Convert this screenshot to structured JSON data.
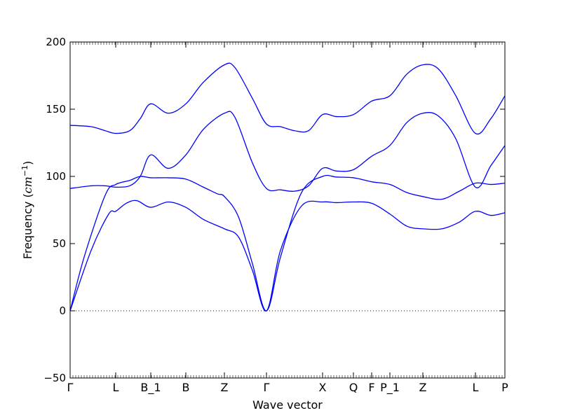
{
  "chart_data": {
    "type": "line",
    "title": "",
    "xlabel": "Wave vector",
    "ylabel_prefix": "Frequency (",
    "ylabel_unit": "cm",
    "ylabel_exp": "−1",
    "ylabel_suffix": ")",
    "ylim": [
      -50,
      200
    ],
    "xlim": [
      0,
      6.2
    ],
    "yticks": [
      -50,
      0,
      50,
      100,
      150,
      200
    ],
    "ytick_labels": [
      "−50",
      "0",
      "50",
      "100",
      "150",
      "200"
    ],
    "xticks": [
      {
        "label": "Γ",
        "x": 0.0
      },
      {
        "label": "L",
        "x": 0.65
      },
      {
        "label": "B_1",
        "x": 1.15
      },
      {
        "label": "B",
        "x": 1.65
      },
      {
        "label": "Z",
        "x": 2.2
      },
      {
        "label": "Γ",
        "x": 2.8
      },
      {
        "label": "X",
        "x": 3.6
      },
      {
        "label": "Q",
        "x": 4.04
      },
      {
        "label": "F",
        "x": 4.3
      },
      {
        "label": "P_1",
        "x": 4.56
      },
      {
        "label": "Z",
        "x": 5.03
      },
      {
        "label": "L",
        "x": 5.78
      },
      {
        "label": "P",
        "x": 6.2
      }
    ],
    "zero_line": true,
    "grid": false,
    "series_color": "#0000ff",
    "series": [
      {
        "points": [
          [
            0,
            0
          ],
          [
            0.3,
            45
          ],
          [
            0.55,
            72
          ],
          [
            0.65,
            74
          ],
          [
            0.8,
            80
          ],
          [
            0.95,
            82
          ],
          [
            1.15,
            77
          ],
          [
            1.4,
            81
          ],
          [
            1.65,
            77
          ],
          [
            1.9,
            68
          ],
          [
            2.2,
            61
          ],
          [
            2.4,
            55
          ],
          [
            2.6,
            30
          ],
          [
            2.8,
            0
          ],
          [
            3.0,
            45
          ],
          [
            3.3,
            78
          ],
          [
            3.6,
            81
          ],
          [
            3.8,
            80.5
          ],
          [
            4.04,
            81
          ],
          [
            4.3,
            80
          ],
          [
            4.56,
            72
          ],
          [
            4.8,
            63
          ],
          [
            5.03,
            61
          ],
          [
            5.3,
            61
          ],
          [
            5.55,
            66
          ],
          [
            5.78,
            74
          ],
          [
            6.0,
            71
          ],
          [
            6.2,
            73
          ]
        ]
      },
      {
        "points": [
          [
            0,
            0
          ],
          [
            0.2,
            40
          ],
          [
            0.5,
            86
          ],
          [
            0.65,
            94
          ],
          [
            0.85,
            97
          ],
          [
            1.0,
            100
          ],
          [
            1.15,
            99
          ],
          [
            1.4,
            99
          ],
          [
            1.65,
            98
          ],
          [
            1.9,
            92
          ],
          [
            2.1,
            87
          ],
          [
            2.2,
            85
          ],
          [
            2.4,
            70
          ],
          [
            2.6,
            35
          ],
          [
            2.8,
            0
          ],
          [
            3.0,
            40
          ],
          [
            3.3,
            88
          ],
          [
            3.6,
            100
          ],
          [
            3.8,
            99.5
          ],
          [
            4.04,
            99
          ],
          [
            4.3,
            96
          ],
          [
            4.56,
            94
          ],
          [
            4.8,
            88
          ],
          [
            5.03,
            85
          ],
          [
            5.3,
            83
          ],
          [
            5.55,
            89
          ],
          [
            5.78,
            95
          ],
          [
            6.0,
            94
          ],
          [
            6.2,
            95
          ]
        ]
      },
      {
        "points": [
          [
            0,
            91
          ],
          [
            0.3,
            93
          ],
          [
            0.5,
            93
          ],
          [
            0.65,
            92
          ],
          [
            0.85,
            93
          ],
          [
            1.0,
            100
          ],
          [
            1.15,
            116
          ],
          [
            1.4,
            106
          ],
          [
            1.65,
            116
          ],
          [
            1.9,
            135
          ],
          [
            2.2,
            147
          ],
          [
            2.35,
            144
          ],
          [
            2.6,
            110
          ],
          [
            2.8,
            91
          ],
          [
            3.0,
            90
          ],
          [
            3.2,
            89
          ],
          [
            3.4,
            93
          ],
          [
            3.6,
            106
          ],
          [
            3.8,
            104
          ],
          [
            4.04,
            105
          ],
          [
            4.3,
            115
          ],
          [
            4.56,
            123
          ],
          [
            4.8,
            140
          ],
          [
            5.03,
            147
          ],
          [
            5.25,
            145
          ],
          [
            5.5,
            128
          ],
          [
            5.78,
            92
          ],
          [
            6.0,
            108
          ],
          [
            6.2,
            123
          ]
        ]
      },
      {
        "points": [
          [
            0,
            138
          ],
          [
            0.3,
            137
          ],
          [
            0.5,
            134
          ],
          [
            0.65,
            132
          ],
          [
            0.85,
            134
          ],
          [
            1.0,
            143
          ],
          [
            1.15,
            154
          ],
          [
            1.4,
            147
          ],
          [
            1.65,
            154
          ],
          [
            1.9,
            170
          ],
          [
            2.2,
            183
          ],
          [
            2.35,
            181
          ],
          [
            2.6,
            158
          ],
          [
            2.8,
            139
          ],
          [
            3.0,
            137
          ],
          [
            3.2,
            134
          ],
          [
            3.4,
            134
          ],
          [
            3.6,
            146
          ],
          [
            3.8,
            144.5
          ],
          [
            4.04,
            146
          ],
          [
            4.3,
            156
          ],
          [
            4.56,
            160
          ],
          [
            4.8,
            176
          ],
          [
            5.03,
            183
          ],
          [
            5.25,
            180
          ],
          [
            5.5,
            160
          ],
          [
            5.78,
            132
          ],
          [
            6.0,
            143
          ],
          [
            6.2,
            160
          ]
        ]
      }
    ]
  }
}
